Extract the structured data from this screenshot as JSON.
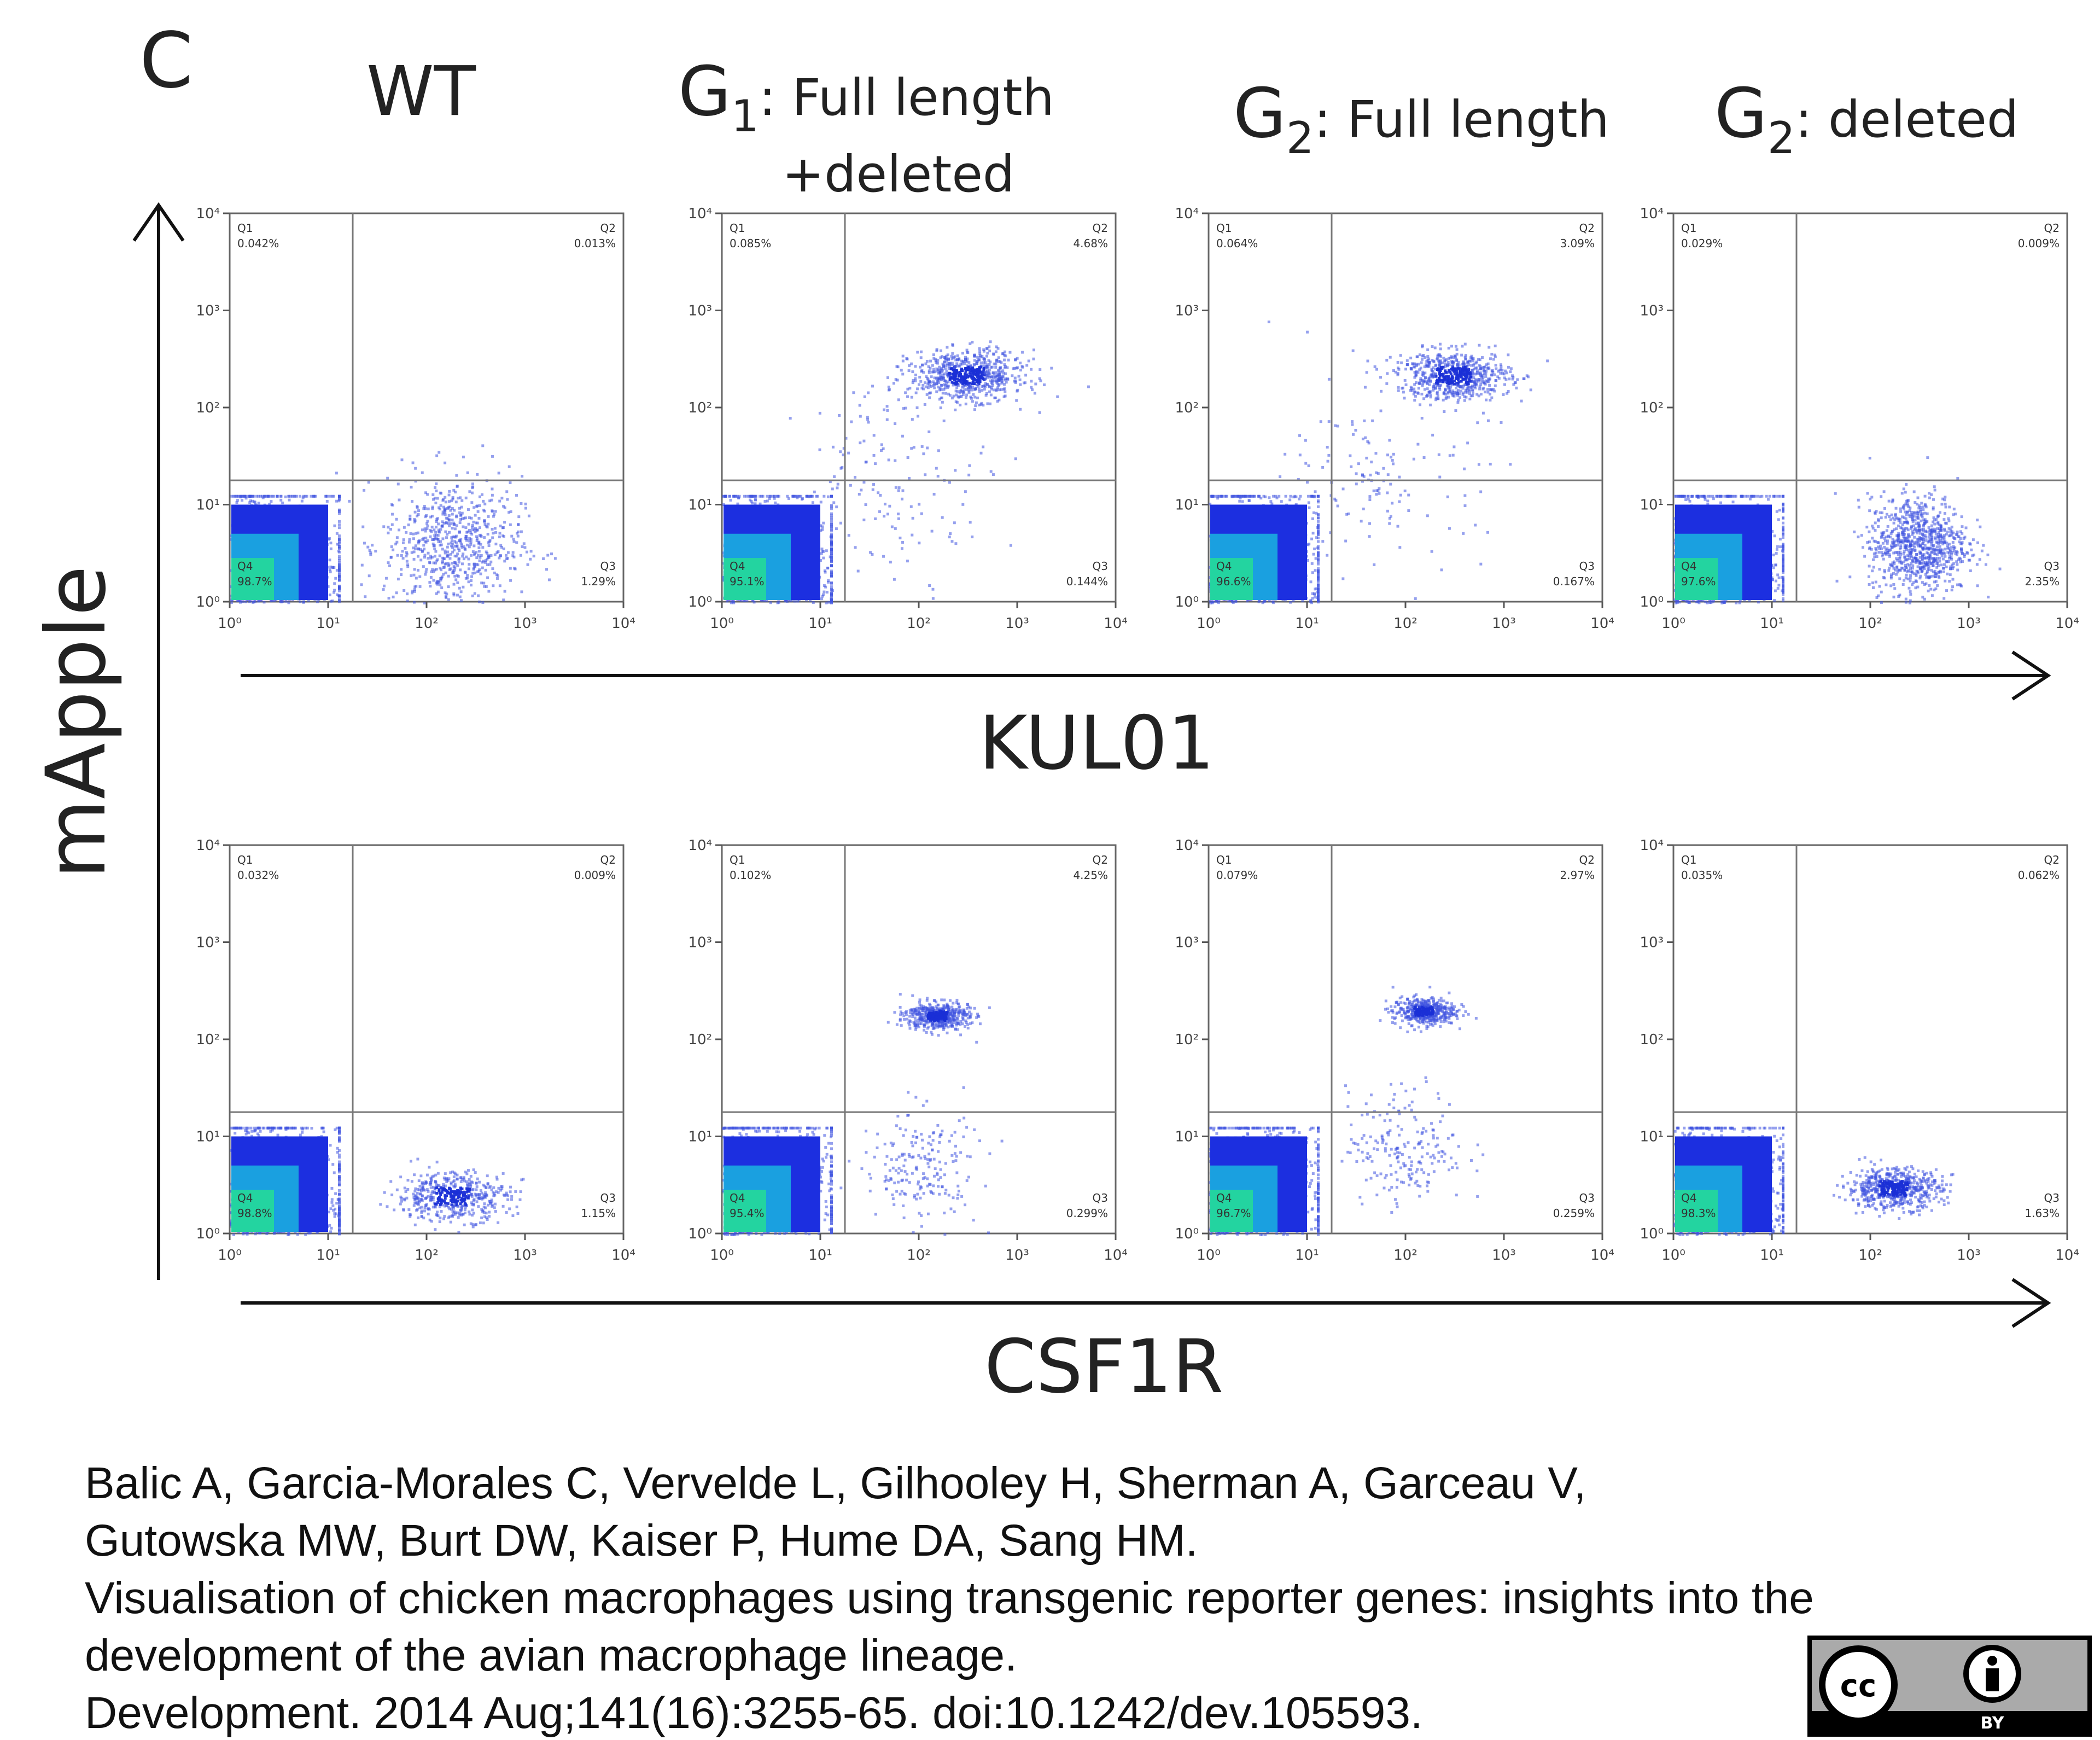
{
  "figure": {
    "panel_letter": "C",
    "y_axis_label": "mApple",
    "x_axis_row1": "KUL01",
    "x_axis_row2": "CSF1R",
    "columns": [
      {
        "prefix": "WT",
        "sub": "",
        "rest": "",
        "line2": ""
      },
      {
        "prefix": "G",
        "sub": "1",
        "rest": ": Full length",
        "line2": "+deleted"
      },
      {
        "prefix": "G",
        "sub": "2",
        "rest": ": Full length",
        "line2": ""
      },
      {
        "prefix": "G",
        "sub": "2",
        "rest": ": deleted",
        "line2": ""
      }
    ]
  },
  "citation": {
    "line1": "Balic A, Garcia-Morales C, Vervelde L, Gilhooley H, Sherman A, Garceau V,",
    "line2": "Gutowska MW, Burt DW, Kaiser P, Hume DA, Sang HM.",
    "line3": "Visualisation of chicken macrophages using transgenic reporter genes: insights into the",
    "line4": "development of the avian macrophage lineage.",
    "line5": "Development. 2014 Aug;141(16):3255-65. doi:10.1242/dev.105593."
  },
  "license": {
    "cc": "cc",
    "by": "BY"
  },
  "chart_data": [
    {
      "type": "scatter",
      "row": "KUL01",
      "column": "WT",
      "xscale": "log",
      "yscale": "log",
      "xlim": [
        1,
        10000
      ],
      "ylim": [
        1,
        10000
      ],
      "quadrants": {
        "Q1": "0.042%",
        "Q2": "0.013%",
        "Q3": "1.29%",
        "Q4": "98.7%"
      },
      "clusters": [
        {
          "x": 1.5,
          "y": 2,
          "spread": 0.35,
          "n": 900,
          "kind": "core"
        },
        {
          "x": 180,
          "y": 4,
          "spread": 0.35,
          "n": 700
        }
      ]
    },
    {
      "type": "scatter",
      "row": "KUL01",
      "column": "G1: Full length +deleted",
      "xscale": "log",
      "yscale": "log",
      "xlim": [
        1,
        10000
      ],
      "ylim": [
        1,
        10000
      ],
      "quadrants": {
        "Q1": "0.085%",
        "Q2": "4.68%",
        "Q3": "0.144%",
        "Q4": "95.1%"
      },
      "clusters": [
        {
          "x": 1.5,
          "y": 2,
          "spread": 0.35,
          "n": 900,
          "kind": "core"
        },
        {
          "x": 300,
          "y": 220,
          "spread": 0.18,
          "n": 700
        },
        {
          "x": 60,
          "y": 20,
          "spread": 0.5,
          "n": 150
        }
      ]
    },
    {
      "type": "scatter",
      "row": "KUL01",
      "column": "G2: Full length",
      "xscale": "log",
      "yscale": "log",
      "xlim": [
        1,
        10000
      ],
      "ylim": [
        1,
        10000
      ],
      "quadrants": {
        "Q1": "0.064%",
        "Q2": "3.09%",
        "Q3": "0.167%",
        "Q4": "96.6%"
      },
      "clusters": [
        {
          "x": 1.5,
          "y": 2,
          "spread": 0.35,
          "n": 900,
          "kind": "core"
        },
        {
          "x": 300,
          "y": 220,
          "spread": 0.18,
          "n": 650
        },
        {
          "x": 60,
          "y": 20,
          "spread": 0.5,
          "n": 150
        }
      ]
    },
    {
      "type": "scatter",
      "row": "KUL01",
      "column": "G2: deleted",
      "xscale": "log",
      "yscale": "log",
      "xlim": [
        1,
        10000
      ],
      "ylim": [
        1,
        10000
      ],
      "quadrants": {
        "Q1": "0.029%",
        "Q2": "0.009%",
        "Q3": "2.35%",
        "Q4": "97.6%"
      },
      "clusters": [
        {
          "x": 1.5,
          "y": 2,
          "spread": 0.35,
          "n": 900,
          "kind": "core"
        },
        {
          "x": 300,
          "y": 4,
          "spread": 0.25,
          "n": 900
        }
      ]
    },
    {
      "type": "scatter",
      "row": "CSF1R",
      "column": "WT",
      "xscale": "log",
      "yscale": "log",
      "xlim": [
        1,
        10000
      ],
      "ylim": [
        1,
        10000
      ],
      "quadrants": {
        "Q1": "0.032%",
        "Q2": "0.009%",
        "Q3": "1.15%",
        "Q4": "98.8%"
      },
      "clusters": [
        {
          "x": 1.5,
          "y": 2,
          "spread": 0.35,
          "n": 900,
          "kind": "core"
        },
        {
          "x": 180,
          "y": 2.5,
          "spread": 0.18,
          "n": 500
        }
      ]
    },
    {
      "type": "scatter",
      "row": "CSF1R",
      "column": "G1: Full length +deleted",
      "xscale": "log",
      "yscale": "log",
      "xlim": [
        1,
        10000
      ],
      "ylim": [
        1,
        10000
      ],
      "quadrants": {
        "Q1": "0.102%",
        "Q2": "4.25%",
        "Q3": "0.299%",
        "Q4": "95.4%"
      },
      "clusters": [
        {
          "x": 1.5,
          "y": 2,
          "spread": 0.35,
          "n": 900,
          "kind": "core"
        },
        {
          "x": 150,
          "y": 180,
          "spread": 0.1,
          "n": 500
        },
        {
          "x": 100,
          "y": 5,
          "spread": 0.3,
          "n": 200
        }
      ]
    },
    {
      "type": "scatter",
      "row": "CSF1R",
      "column": "G2: Full length",
      "xscale": "log",
      "yscale": "log",
      "xlim": [
        1,
        10000
      ],
      "ylim": [
        1,
        10000
      ],
      "quadrants": {
        "Q1": "0.079%",
        "Q2": "2.97%",
        "Q3": "0.259%",
        "Q4": "96.7%"
      },
      "clusters": [
        {
          "x": 1.5,
          "y": 2,
          "spread": 0.35,
          "n": 900,
          "kind": "core"
        },
        {
          "x": 150,
          "y": 200,
          "spread": 0.1,
          "n": 450
        },
        {
          "x": 100,
          "y": 8,
          "spread": 0.3,
          "n": 200
        }
      ]
    },
    {
      "type": "scatter",
      "row": "CSF1R",
      "column": "G2: deleted",
      "xscale": "log",
      "yscale": "log",
      "xlim": [
        1,
        10000
      ],
      "ylim": [
        1,
        10000
      ],
      "quadrants": {
        "Q1": "0.035%",
        "Q2": "0.062%",
        "Q3": "1.63%",
        "Q4": "98.3%"
      },
      "clusters": [
        {
          "x": 1.5,
          "y": 2,
          "spread": 0.35,
          "n": 900,
          "kind": "core"
        },
        {
          "x": 170,
          "y": 3,
          "spread": 0.15,
          "n": 600
        }
      ]
    }
  ]
}
